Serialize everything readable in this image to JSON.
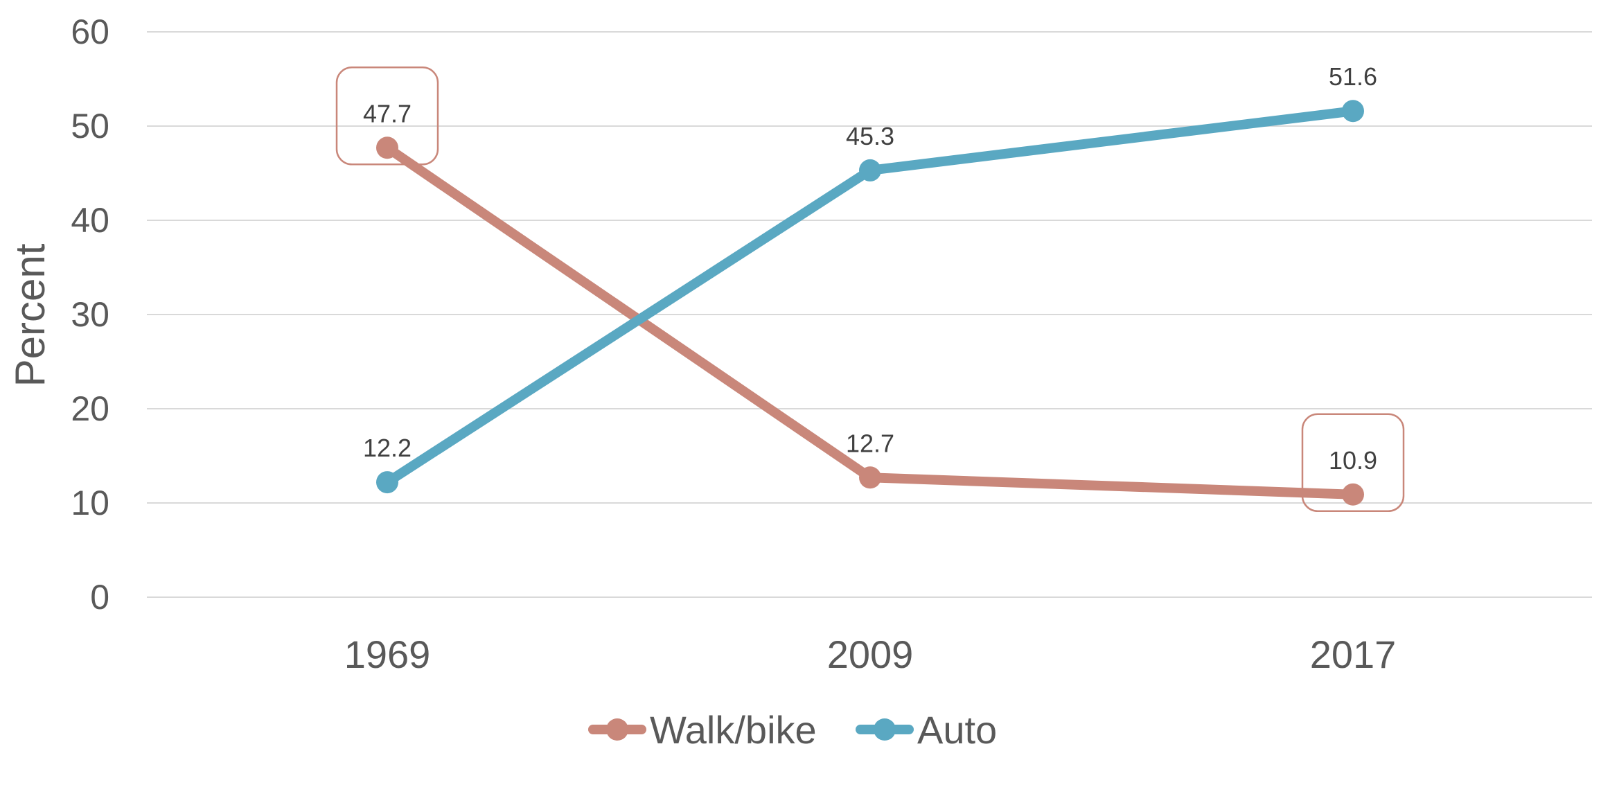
{
  "chart_data": {
    "type": "line",
    "categories": [
      "1969",
      "2009",
      "2017"
    ],
    "series": [
      {
        "name": "Walk/bike",
        "values": [
          47.7,
          12.7,
          10.9
        ],
        "color": "#c9877a"
      },
      {
        "name": "Auto",
        "values": [
          12.2,
          45.3,
          51.6
        ],
        "color": "#5aa8c2"
      }
    ],
    "data_labels": [
      {
        "series": 0,
        "index": 0,
        "text": "47.7",
        "callout": true
      },
      {
        "series": 0,
        "index": 1,
        "text": "12.7",
        "callout": false
      },
      {
        "series": 0,
        "index": 2,
        "text": "10.9",
        "callout": true
      },
      {
        "series": 1,
        "index": 0,
        "text": "12.2",
        "callout": false
      },
      {
        "series": 1,
        "index": 1,
        "text": "45.3",
        "callout": false
      },
      {
        "series": 1,
        "index": 2,
        "text": "51.6",
        "callout": false
      }
    ],
    "ylabel": "Percent",
    "ylim": [
      0,
      60
    ],
    "yticks": [
      "0",
      "10",
      "20",
      "30",
      "40",
      "50",
      "60"
    ],
    "grid": true,
    "legend_position": "bottom"
  }
}
